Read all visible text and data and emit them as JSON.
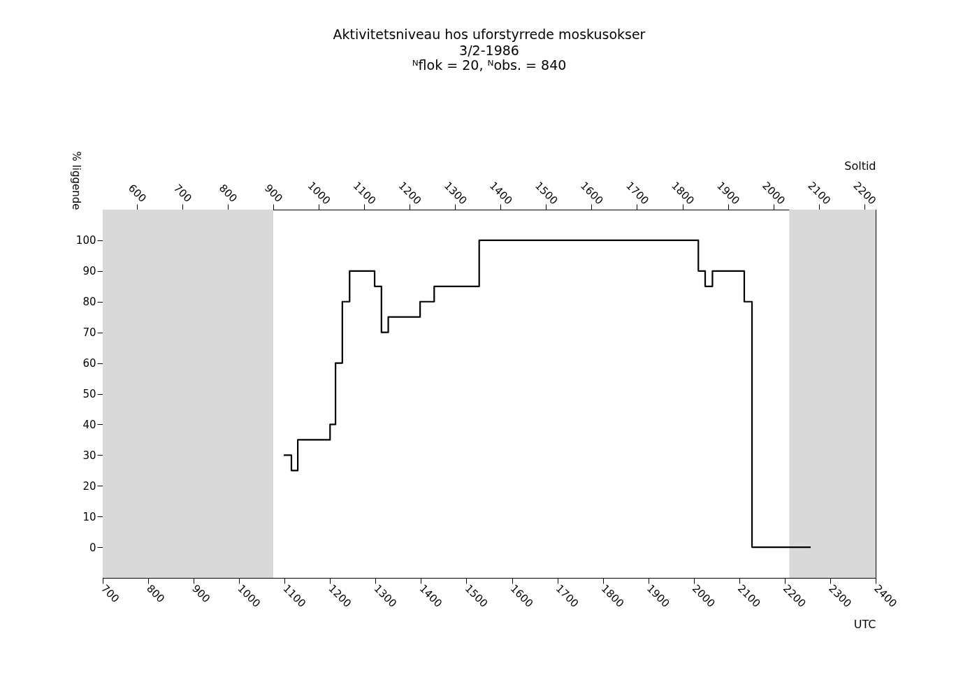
{
  "chart_data": {
    "type": "step",
    "title": "Aktivitetsniveau hos uforstyrrede moskusokser",
    "subtitle": "3/2-1986",
    "annotations": [
      "ᴺflok = 20, ᴺobs. = 840"
    ],
    "xlabel": "UTC",
    "x2label": "Soltid",
    "ylabel": "% liggende",
    "x": [
      1098,
      1115,
      1129,
      1200,
      1212,
      1227,
      1243,
      1298,
      1313,
      1328,
      1398,
      1429,
      1528,
      2010,
      2025,
      2041,
      2111,
      2128,
      2257
    ],
    "series": [
      {
        "color": "#000000",
        "values": [
          30,
          25,
          35,
          40,
          60,
          80,
          90,
          85,
          70,
          75,
          80,
          85,
          100,
          90,
          85,
          90,
          80,
          0,
          0
        ]
      }
    ],
    "xlim": [
      700,
      2400
    ],
    "xticks": [
      700,
      800,
      900,
      1000,
      1100,
      1200,
      1300,
      1400,
      1500,
      1600,
      1700,
      1800,
      1900,
      2000,
      2100,
      2200,
      2300,
      2400
    ],
    "x2lim": [
      525,
      2225
    ],
    "x2ticks": [
      600,
      700,
      800,
      900,
      1000,
      1100,
      1200,
      1300,
      1400,
      1500,
      1600,
      1700,
      1800,
      1900,
      2000,
      2100,
      2200
    ],
    "ylim": [
      -10,
      110
    ],
    "yticks": [
      0,
      10,
      20,
      30,
      40,
      50,
      60,
      70,
      80,
      90,
      100
    ],
    "bands": [
      {
        "axis": "x",
        "from": 700,
        "to": 1075,
        "color": "#d9d9d9"
      },
      {
        "axis": "x",
        "from": 2210,
        "to": 2400,
        "color": "#d9d9d9"
      }
    ],
    "line_style": "solid",
    "grid": false
  }
}
